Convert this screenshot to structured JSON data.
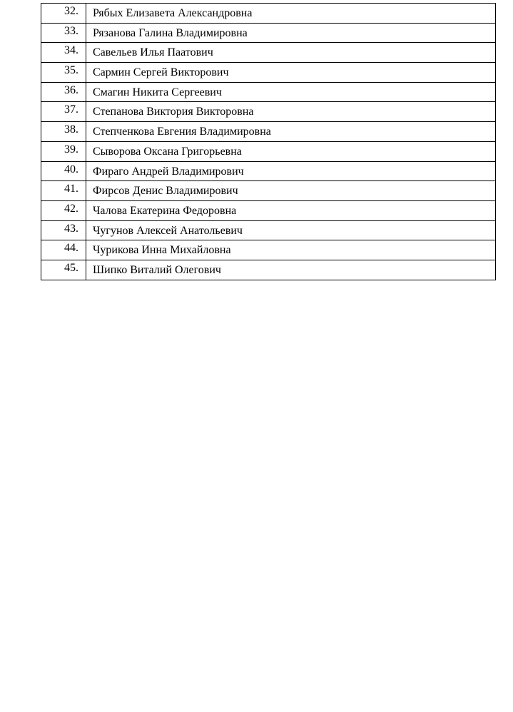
{
  "page": {
    "background_color": "#ffffff",
    "text_color": "#000000"
  },
  "table": {
    "border_color": "#000000",
    "columns": [
      "number",
      "full_name"
    ],
    "rows": [
      {
        "num": "32.",
        "name": "Рябых Елизавета Александровна"
      },
      {
        "num": "33.",
        "name": "Рязанова Галина Владимировна"
      },
      {
        "num": "34.",
        "name": "Савельев Илья Паатович"
      },
      {
        "num": "35.",
        "name": "Сармин Сергей Викторович"
      },
      {
        "num": "36.",
        "name": "Смагин Никита Сергеевич"
      },
      {
        "num": "37.",
        "name": "Степанова Виктория Викторовна"
      },
      {
        "num": "38.",
        "name": "Степченкова Евгения Владимировна"
      },
      {
        "num": "39.",
        "name": "Сыворова Оксана Григорьевна"
      },
      {
        "num": "40.",
        "name": "Фираго Андрей Владимирович"
      },
      {
        "num": "41.",
        "name": "Фирсов Денис Владимирович"
      },
      {
        "num": "42.",
        "name": "Чалова Екатерина Федоровна"
      },
      {
        "num": "43.",
        "name": "Чугунов Алексей Анатольевич"
      },
      {
        "num": "44.",
        "name": "Чурикова Инна Михайловна"
      },
      {
        "num": "45.",
        "name": "Шипко Виталий Олегович"
      }
    ]
  }
}
